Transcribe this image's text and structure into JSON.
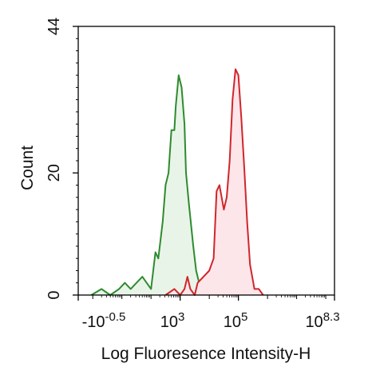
{
  "chart_data": {
    "type": "area",
    "title": "",
    "xlabel": "Log Fluoresence Intensity-H",
    "ylabel": "Count",
    "x_scale": "log (biexponential)",
    "x_tick_labels": [
      {
        "base": "-10",
        "exp": "-0.5"
      },
      {
        "base": "10",
        "exp": "3"
      },
      {
        "base": "10",
        "exp": "5"
      },
      {
        "base": "10",
        "exp": "8.3"
      }
    ],
    "y_tick_labels": [
      "0",
      "20",
      "44"
    ],
    "xlim_log10": [
      -0.5,
      8.3
    ],
    "ylim": [
      0,
      44
    ],
    "grid": false,
    "legend": "none",
    "series": [
      {
        "color": "#2e8b2e",
        "fill": "#e9f4e9",
        "points": [
          [
            -0.05,
            0
          ],
          [
            0.3,
            1
          ],
          [
            0.6,
            0
          ],
          [
            0.9,
            1
          ],
          [
            1.1,
            2
          ],
          [
            1.3,
            1
          ],
          [
            1.5,
            2
          ],
          [
            1.7,
            3
          ],
          [
            1.85,
            2
          ],
          [
            2.0,
            1
          ],
          [
            2.15,
            7
          ],
          [
            2.25,
            6
          ],
          [
            2.4,
            12
          ],
          [
            2.5,
            18
          ],
          [
            2.6,
            20
          ],
          [
            2.7,
            27
          ],
          [
            2.8,
            27
          ],
          [
            2.85,
            31
          ],
          [
            2.95,
            36
          ],
          [
            3.05,
            34
          ],
          [
            3.15,
            28
          ],
          [
            3.2,
            20
          ],
          [
            3.3,
            15
          ],
          [
            3.45,
            8
          ],
          [
            3.55,
            4
          ],
          [
            3.65,
            2
          ],
          [
            3.75,
            1
          ],
          [
            3.85,
            0
          ]
        ]
      },
      {
        "color": "#d0262b",
        "fill": "#fde6ea",
        "points": [
          [
            2.5,
            0
          ],
          [
            2.8,
            1
          ],
          [
            3.0,
            0
          ],
          [
            3.15,
            1
          ],
          [
            3.25,
            3
          ],
          [
            3.35,
            1
          ],
          [
            3.5,
            0
          ],
          [
            3.6,
            2
          ],
          [
            3.8,
            3
          ],
          [
            4.0,
            4
          ],
          [
            4.15,
            6
          ],
          [
            4.25,
            17
          ],
          [
            4.35,
            18
          ],
          [
            4.5,
            14
          ],
          [
            4.6,
            16
          ],
          [
            4.7,
            22
          ],
          [
            4.8,
            32
          ],
          [
            4.9,
            37
          ],
          [
            5.0,
            36
          ],
          [
            5.1,
            29
          ],
          [
            5.2,
            21
          ],
          [
            5.3,
            12
          ],
          [
            5.4,
            5
          ],
          [
            5.55,
            1
          ],
          [
            5.7,
            1
          ],
          [
            5.85,
            0
          ]
        ]
      }
    ]
  }
}
